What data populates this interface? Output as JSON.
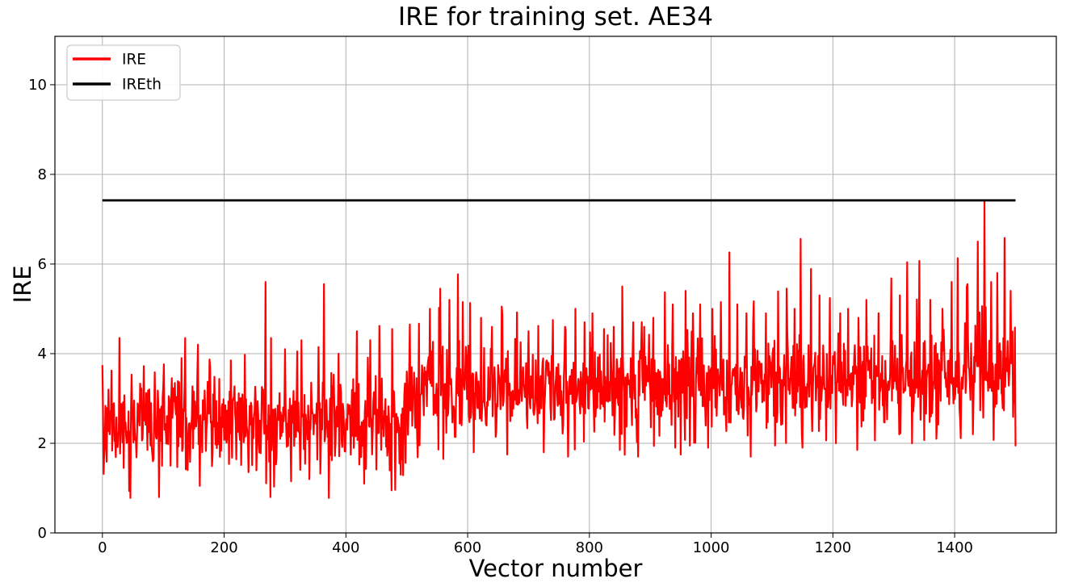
{
  "figure": {
    "background_color": "#ffffff",
    "kind": "matplotlib-line-plot"
  },
  "chart_data": {
    "type": "line",
    "title": "IRE for training set. AE34",
    "xlabel": "Vector number",
    "ylabel": "IRE",
    "xlim": [
      -78,
      1567
    ],
    "ylim": [
      0,
      11.08
    ],
    "xticks": [
      0,
      200,
      400,
      600,
      800,
      1000,
      1200,
      1400
    ],
    "yticks": [
      0,
      2,
      4,
      6,
      8,
      10
    ],
    "grid": true,
    "grid_color": "#b0b0b0",
    "axis_color": "#000000",
    "legend": {
      "position": "upper-left",
      "entries": [
        {
          "label": "IRE",
          "color": "#ff0000"
        },
        {
          "label": "IREth",
          "color": "#000000"
        }
      ]
    },
    "series": [
      {
        "name": "IRE",
        "color": "#ff0000",
        "line_width": 2.2,
        "style": "noisy-line",
        "x_start": 0,
        "x_end": 1500,
        "approximation": {
          "note": "dense noise series reconstructed from envelope; means step up near x=500 and drift upward after x=1000",
          "seed": 11,
          "sigma": 0.5,
          "mean_segments": [
            [
              0,
              500,
              2.42,
              2.42
            ],
            [
              500,
              1000,
              3.16,
              3.22
            ],
            [
              1000,
              1501,
              3.24,
              3.55
            ]
          ],
          "min_clip": [
            0.78,
            1.55,
            1.6
          ],
          "max_clip": [
            4.35,
            5.05,
            5.55
          ],
          "spike_prob": 0.018,
          "spike_base": 0.8,
          "spike_range": 1.7,
          "dip_prob": 0.022,
          "dip_base": 0.85,
          "dip_range": 0.65
        },
        "peaks": [
          [
            0,
            3.73
          ],
          [
            68,
            3.72
          ],
          [
            130,
            3.9
          ],
          [
            157,
            4.2
          ],
          [
            211,
            3.85
          ],
          [
            268,
            5.6
          ],
          [
            300,
            4.1
          ],
          [
            320,
            4.05
          ],
          [
            364,
            5.55
          ],
          [
            388,
            4.0
          ],
          [
            418,
            4.5
          ],
          [
            440,
            4.3
          ],
          [
            455,
            4.62
          ],
          [
            476,
            4.55
          ],
          [
            505,
            4.65
          ],
          [
            520,
            4.67
          ],
          [
            538,
            5.0
          ],
          [
            555,
            5.45
          ],
          [
            570,
            5.2
          ],
          [
            584,
            5.77
          ],
          [
            592,
            5.15
          ],
          [
            604,
            5.13
          ],
          [
            622,
            4.8
          ],
          [
            640,
            4.6
          ],
          [
            657,
            4.86
          ],
          [
            681,
            4.92
          ],
          [
            700,
            4.5
          ],
          [
            716,
            4.62
          ],
          [
            740,
            4.75
          ],
          [
            760,
            4.6
          ],
          [
            777,
            5.0
          ],
          [
            792,
            4.7
          ],
          [
            805,
            4.9
          ],
          [
            824,
            4.55
          ],
          [
            840,
            4.6
          ],
          [
            854,
            5.5
          ],
          [
            872,
            4.7
          ],
          [
            890,
            4.6
          ],
          [
            905,
            4.8
          ],
          [
            924,
            5.37
          ],
          [
            937,
            5.1
          ],
          [
            958,
            5.4
          ],
          [
            970,
            4.9
          ],
          [
            982,
            5.1
          ],
          [
            1002,
            5.0
          ],
          [
            1016,
            5.15
          ],
          [
            1030,
            6.26
          ],
          [
            1043,
            5.1
          ],
          [
            1058,
            4.9
          ],
          [
            1070,
            5.17
          ],
          [
            1090,
            4.9
          ],
          [
            1110,
            5.39
          ],
          [
            1124,
            5.45
          ],
          [
            1137,
            5.0
          ],
          [
            1147,
            6.56
          ],
          [
            1164,
            5.89
          ],
          [
            1178,
            5.3
          ],
          [
            1195,
            5.24
          ],
          [
            1212,
            4.9
          ],
          [
            1225,
            5.0
          ],
          [
            1242,
            4.8
          ],
          [
            1255,
            5.2
          ],
          [
            1275,
            4.9
          ],
          [
            1296,
            5.68
          ],
          [
            1310,
            5.3
          ],
          [
            1322,
            6.04
          ],
          [
            1342,
            6.07
          ],
          [
            1360,
            5.2
          ],
          [
            1380,
            5.0
          ],
          [
            1395,
            5.6
          ],
          [
            1405,
            6.13
          ],
          [
            1420,
            5.5
          ],
          [
            1438,
            6.5
          ],
          [
            1449,
            7.42
          ],
          [
            1460,
            5.6
          ],
          [
            1470,
            5.8
          ],
          [
            1482,
            6.58
          ],
          [
            1492,
            5.4
          ]
        ],
        "dips": [
          [
            35,
            1.45
          ],
          [
            93,
            0.8
          ],
          [
            160,
            1.05
          ],
          [
            276,
            0.8
          ],
          [
            310,
            1.15
          ],
          [
            340,
            1.2
          ],
          [
            372,
            0.78
          ],
          [
            430,
            1.1
          ],
          [
            475,
            0.95
          ],
          [
            490,
            1.3
          ],
          [
            560,
            1.65
          ],
          [
            610,
            1.8
          ],
          [
            665,
            1.75
          ],
          [
            725,
            1.8
          ],
          [
            765,
            1.7
          ],
          [
            850,
            1.85
          ],
          [
            880,
            1.7
          ],
          [
            950,
            1.75
          ],
          [
            995,
            1.9
          ],
          [
            1065,
            1.7
          ],
          [
            1105,
            1.95
          ],
          [
            1150,
            1.9
          ],
          [
            1205,
            2.0
          ],
          [
            1240,
            1.85
          ],
          [
            1330,
            2.0
          ],
          [
            1370,
            2.1
          ],
          [
            1430,
            2.2
          ],
          [
            1500,
            1.95
          ]
        ]
      },
      {
        "name": "IREth",
        "color": "#000000",
        "line_width": 2.8,
        "style": "hline",
        "value": 7.42,
        "x_start": 0,
        "x_end": 1500
      }
    ]
  }
}
